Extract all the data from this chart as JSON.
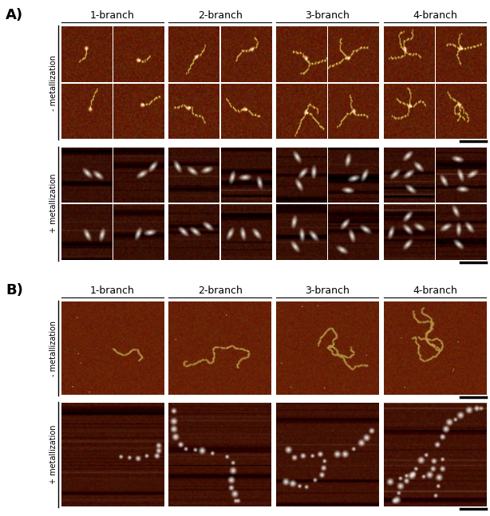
{
  "panel_A_label": "A)",
  "panel_B_label": "B)",
  "branch_labels": [
    "1-branch",
    "2-branch",
    "3-branch",
    "4-branch"
  ],
  "row_labels_A": [
    "- metallization",
    "+ metallization"
  ],
  "row_labels_B": [
    "- metallization",
    "+ metallization"
  ],
  "bg_color": "#ffffff",
  "afm_bg_r": 0.38,
  "afm_bg_g": 0.12,
  "afm_bg_b": 0.02,
  "afm_dark_r": 0.22,
  "afm_dark_g": 0.06,
  "afm_dark_b": 0.01,
  "branch_fontsize": 9,
  "rotated_label_fontsize": 7.0,
  "panel_label_fontsize": 13
}
